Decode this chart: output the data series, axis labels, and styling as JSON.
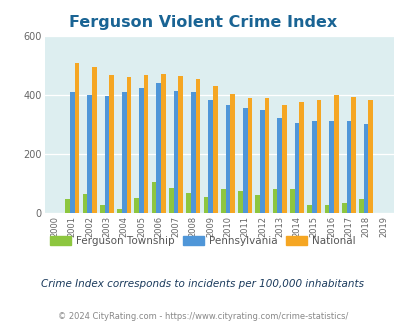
{
  "title": "Ferguson Violent Crime Index",
  "years": [
    2000,
    2001,
    2002,
    2003,
    2004,
    2005,
    2006,
    2007,
    2008,
    2009,
    2010,
    2011,
    2012,
    2013,
    2014,
    2015,
    2016,
    2017,
    2018,
    2019
  ],
  "ferguson": [
    0,
    48,
    65,
    28,
    12,
    50,
    105,
    85,
    68,
    55,
    80,
    73,
    60,
    80,
    80,
    28,
    27,
    33,
    48,
    0
  ],
  "pennsylvania": [
    0,
    410,
    400,
    398,
    410,
    425,
    440,
    415,
    410,
    385,
    367,
    355,
    348,
    323,
    305,
    313,
    311,
    311,
    302,
    0
  ],
  "national": [
    0,
    510,
    495,
    470,
    462,
    468,
    473,
    466,
    455,
    430,
    405,
    390,
    390,
    368,
    376,
    383,
    400,
    395,
    382,
    0
  ],
  "ferguson_color": "#8dc63f",
  "pennsylvania_color": "#4f96d8",
  "national_color": "#f5a623",
  "bg_color": "#ddeef0",
  "ylim": [
    0,
    600
  ],
  "yticks": [
    0,
    200,
    400,
    600
  ],
  "subtitle": "Crime Index corresponds to incidents per 100,000 inhabitants",
  "footer": "© 2024 CityRating.com - https://www.cityrating.com/crime-statistics/",
  "title_color": "#1a6494",
  "subtitle_color": "#1a3a5c",
  "footer_color": "#888888",
  "url_color": "#4f96d8",
  "legend_text_color": "#555555",
  "bar_width": 0.27,
  "xlim": [
    1999.4,
    2019.6
  ],
  "fig_width": 4.06,
  "fig_height": 3.3,
  "dpi": 100
}
